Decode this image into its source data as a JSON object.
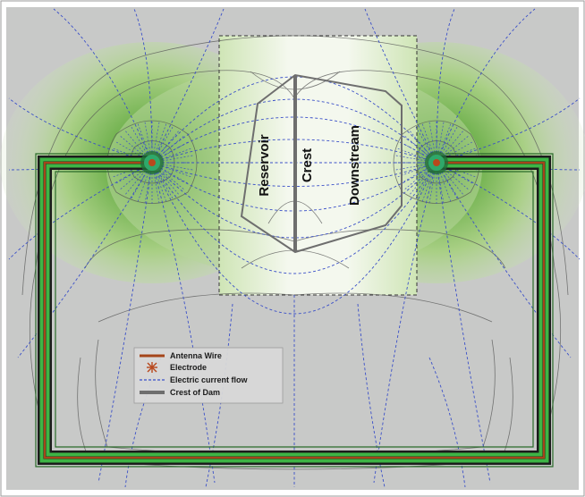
{
  "colors": {
    "frame_bg": "#c8c9c8",
    "antenna_wire": "#a5451a",
    "electrode": "#b8481c",
    "current_flow": "#3a4fc8",
    "dam_crest": "#6e6e6e",
    "conductive_zone": "#3db545",
    "window_fill": "#f4f8ee"
  },
  "zones": {
    "reservoir": "Reservoir",
    "crest": "Crest",
    "downstream": "Downstream"
  },
  "legend": {
    "items": [
      {
        "label": "Antenna Wire",
        "symbol": "wire-line"
      },
      {
        "label": "Electrode",
        "symbol": "electrode-star"
      },
      {
        "label": "Electric current flow",
        "symbol": "dashed-line"
      },
      {
        "label": "Crest of Dam",
        "symbol": "crest-line"
      }
    ]
  }
}
